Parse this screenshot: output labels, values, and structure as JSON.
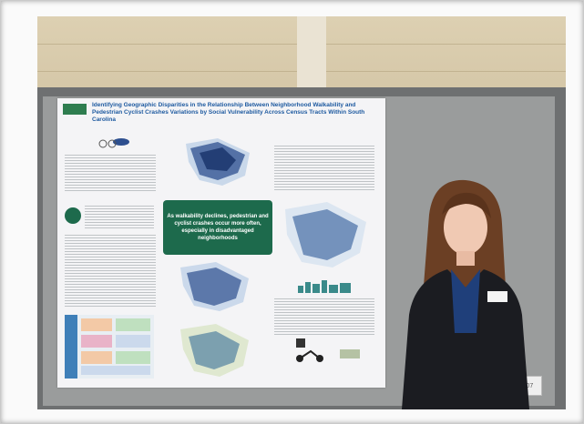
{
  "photo": {
    "poster": {
      "logo_text": "",
      "title": "Identifying Geographic Disparities in the Relationship Between Neighborhood Walkability and Pedestrian Cyclist Crashes Variations by Social Vulnerability Across Census Tracts Within South Carolina",
      "callout": "As walkability declines, pedestrian and cyclist crashes occur more often, especially in disadvantaged neighborhoods"
    },
    "board_tag": "P07",
    "colors": {
      "poster_title": "#1e5aa0",
      "callout_bg": "#1d6a4c",
      "board": "#9a9c9c",
      "wall": "#d8caab"
    }
  }
}
